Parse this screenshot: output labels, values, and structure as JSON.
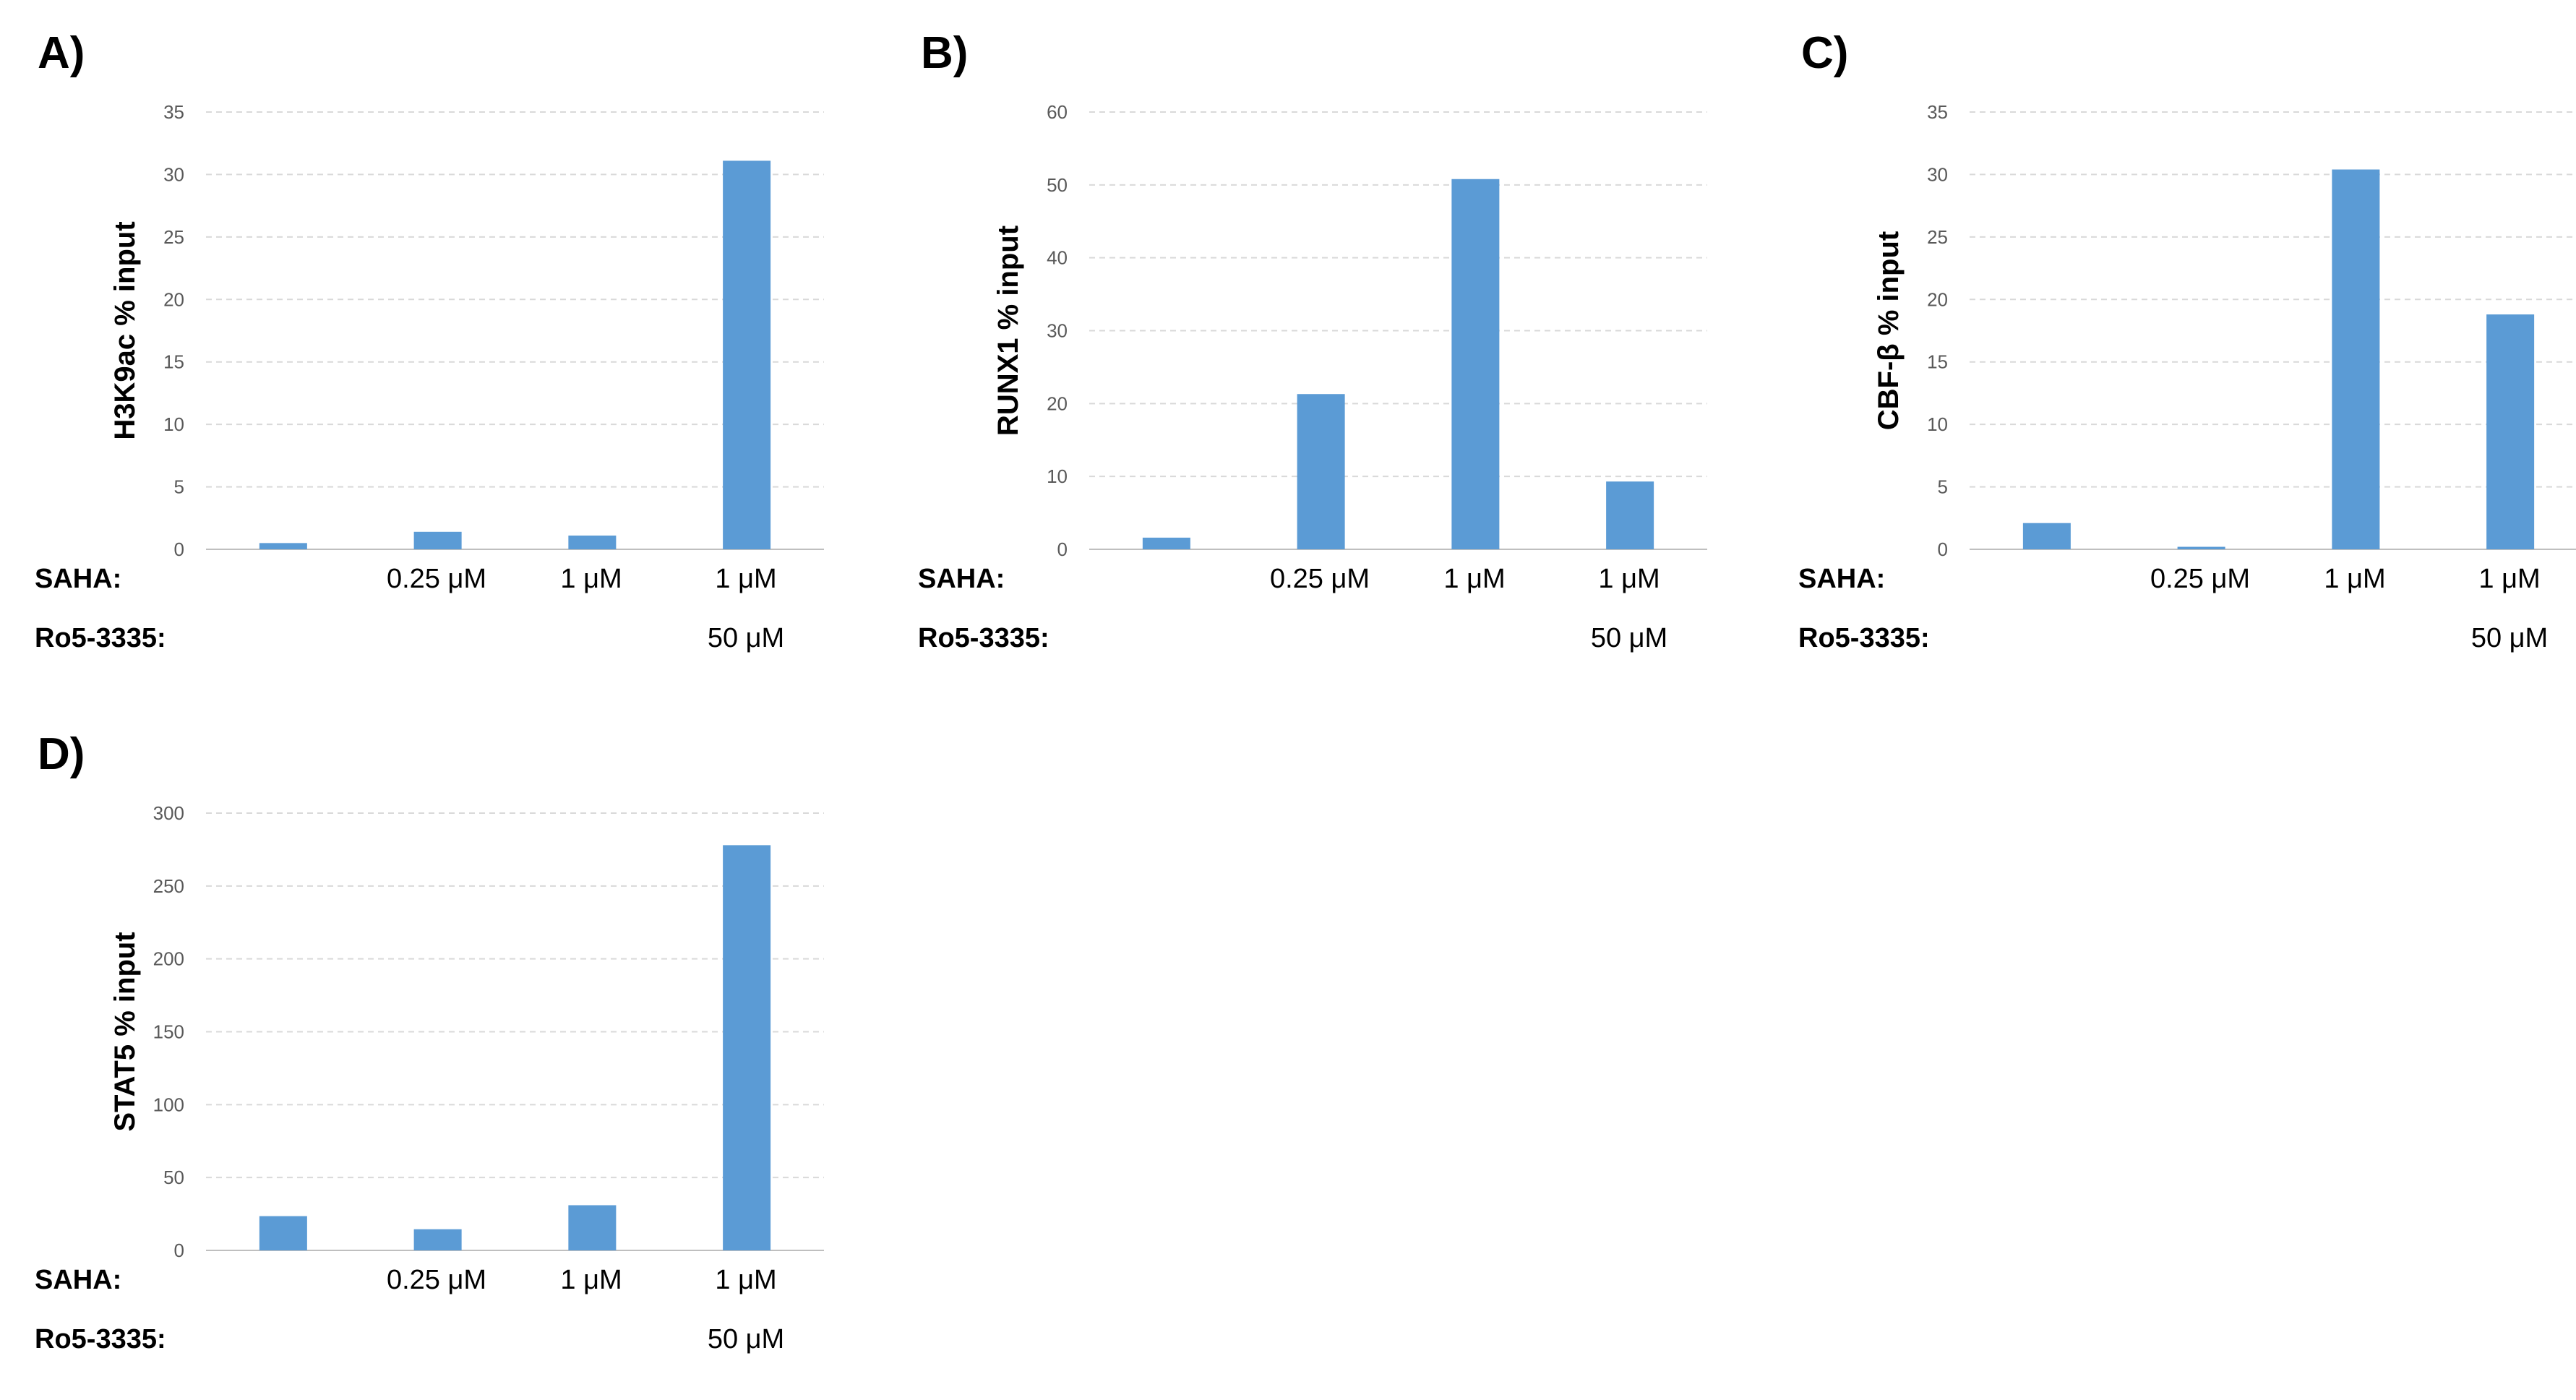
{
  "row_labels": {
    "saha": "SAHA:",
    "ro": "Ro5-3335:"
  },
  "colors": {
    "bar": "#5b9bd5",
    "grid": "#d9d9d9",
    "axis": "#bfbfbf",
    "tick_text": "#595959"
  },
  "chart_data": [
    {
      "panel": "A)",
      "type": "bar",
      "ylabel": "H3K9ac % input",
      "ylim": [
        0,
        35
      ],
      "yticks": [
        0,
        5,
        10,
        15,
        20,
        25,
        30,
        35
      ],
      "categories": [
        {
          "saha": "",
          "ro": ""
        },
        {
          "saha": "0.25 μM",
          "ro": ""
        },
        {
          "saha": "1 μM",
          "ro": ""
        },
        {
          "saha": "1 μM",
          "ro": "50 μM"
        }
      ],
      "values": [
        0.5,
        1.4,
        1.1,
        31.1
      ],
      "gridlines": "horizontal-dashed"
    },
    {
      "panel": "B)",
      "type": "bar",
      "ylabel": "RUNX1 % input",
      "ylim": [
        0,
        60
      ],
      "yticks": [
        0,
        10,
        20,
        30,
        40,
        50,
        60
      ],
      "categories": [
        {
          "saha": "",
          "ro": ""
        },
        {
          "saha": "0.25 μM",
          "ro": ""
        },
        {
          "saha": "1 μM",
          "ro": ""
        },
        {
          "saha": "1 μM",
          "ro": "50 μM"
        }
      ],
      "values": [
        1.6,
        21.3,
        50.8,
        9.3
      ],
      "gridlines": "horizontal-dashed"
    },
    {
      "panel": "C)",
      "type": "bar",
      "ylabel": "CBF-β % input",
      "ylim": [
        0,
        35
      ],
      "yticks": [
        0,
        5,
        10,
        15,
        20,
        25,
        30,
        35
      ],
      "categories": [
        {
          "saha": "",
          "ro": ""
        },
        {
          "saha": "0.25 μM",
          "ro": ""
        },
        {
          "saha": "1 μM",
          "ro": ""
        },
        {
          "saha": "1 μM",
          "ro": "50 μM"
        }
      ],
      "values": [
        2.1,
        0.2,
        30.4,
        18.8
      ],
      "gridlines": "horizontal-dashed"
    },
    {
      "panel": "D)",
      "type": "bar",
      "ylabel": "STAT5 % input",
      "ylim": [
        0,
        300
      ],
      "yticks": [
        0,
        50,
        100,
        150,
        200,
        250,
        300
      ],
      "categories": [
        {
          "saha": "",
          "ro": ""
        },
        {
          "saha": "0.25 μM",
          "ro": ""
        },
        {
          "saha": "1 μM",
          "ro": ""
        },
        {
          "saha": "1 μM",
          "ro": "50 μM"
        }
      ],
      "values": [
        23.5,
        14.5,
        31.0,
        278.0
      ],
      "gridlines": "horizontal-dashed"
    }
  ]
}
